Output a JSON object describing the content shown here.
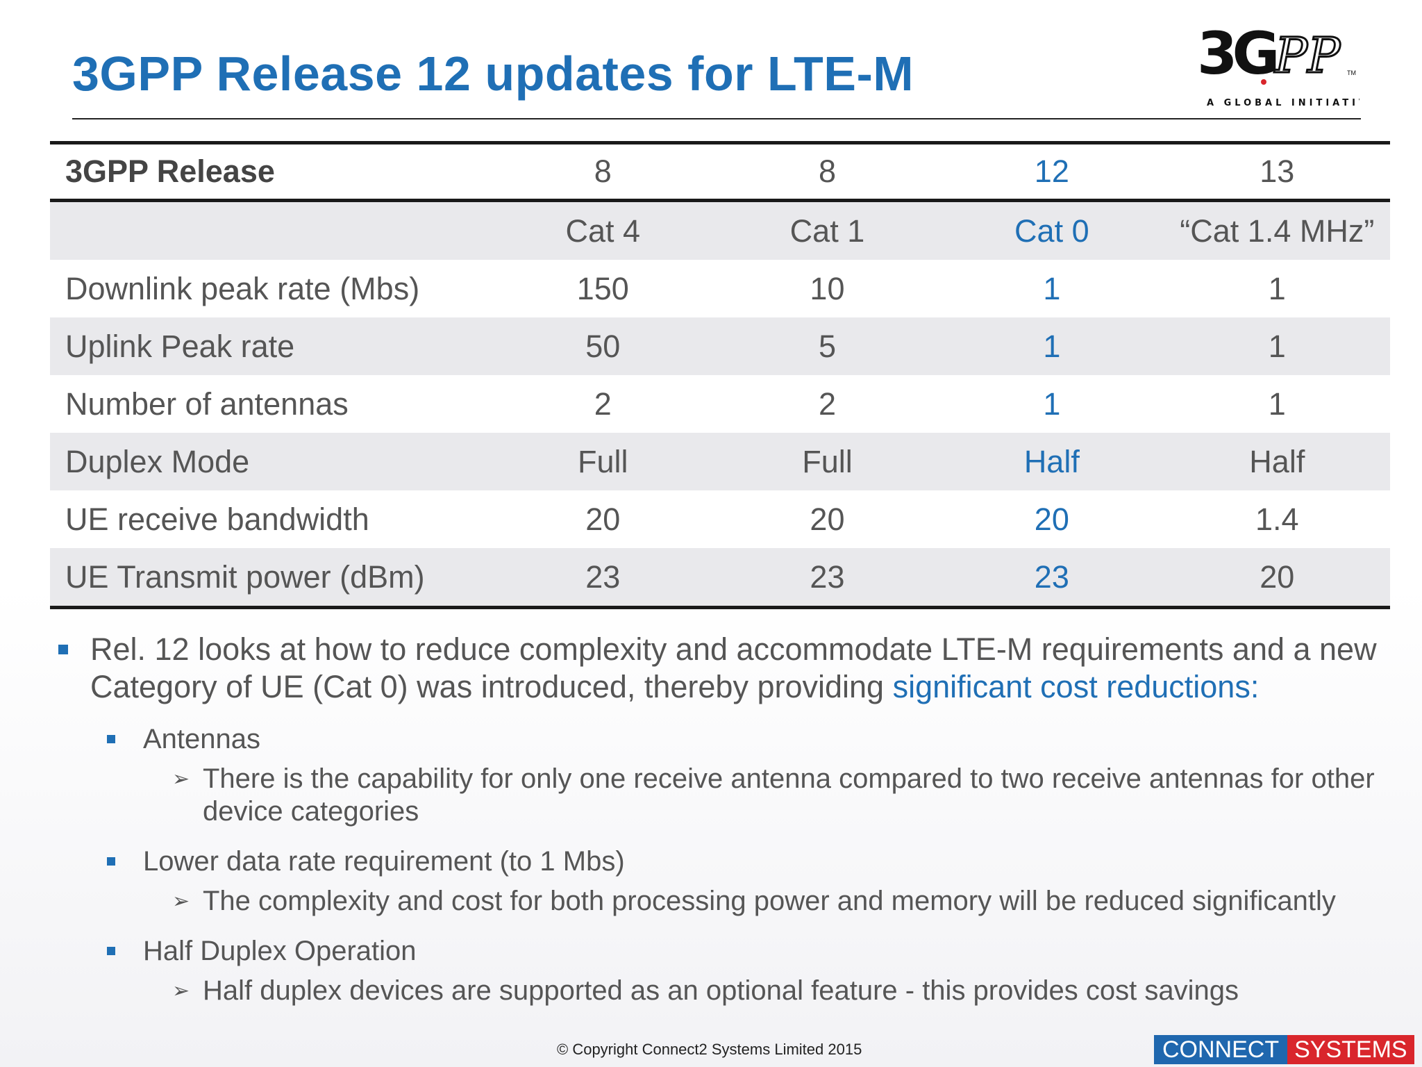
{
  "title": "3GPP Release 12 updates for LTE-M",
  "logo": {
    "mark": "3GPP",
    "tagline": "A GLOBAL INITIATIVE",
    "tm": "TM"
  },
  "table": {
    "header": [
      "3GPP Release",
      "8",
      "8",
      "12",
      "13"
    ],
    "rows": [
      [
        "",
        "Cat 4",
        "Cat 1",
        "Cat 0",
        "“Cat 1.4 MHz”"
      ],
      [
        "Downlink peak rate (Mbs)",
        "150",
        "10",
        "1",
        "1"
      ],
      [
        "Uplink Peak rate",
        "50",
        "5",
        "1",
        "1"
      ],
      [
        "Number of antennas",
        "2",
        "2",
        "1",
        "1"
      ],
      [
        "Duplex Mode",
        "Full",
        "Full",
        "Half",
        "Half"
      ],
      [
        "UE receive bandwidth",
        "20",
        "20",
        "20",
        "1.4"
      ],
      [
        "UE Transmit power (dBm)",
        "23",
        "23",
        "23",
        "20"
      ]
    ],
    "highlight_color": "#1f6fb5"
  },
  "bullets": {
    "main_text": "Rel. 12 looks at how to reduce complexity and accommodate LTE-M requirements and a new Category of UE (Cat 0) was introduced, thereby providing ",
    "main_accent": "significant cost reductions:",
    "items": [
      {
        "label": "Antennas",
        "detail": "There is the capability for only one receive antenna compared to two receive antennas for other device categories"
      },
      {
        "label": "Lower data rate requirement (to 1 Mbs)",
        "detail": "The complexity and cost for both processing power and memory will be reduced significantly"
      },
      {
        "label": "Half Duplex Operation",
        "detail": "Half duplex devices are supported as an optional feature - this provides cost savings"
      }
    ]
  },
  "footer": {
    "copyright": "© Copyright Connect2 Systems Limited 2015",
    "brand_left": "CONNECT",
    "brand_right": "SYSTEMS"
  },
  "colors": {
    "accent": "#1f6fb5",
    "brand_blue": "#1f67ae",
    "brand_red": "#d9262c"
  }
}
